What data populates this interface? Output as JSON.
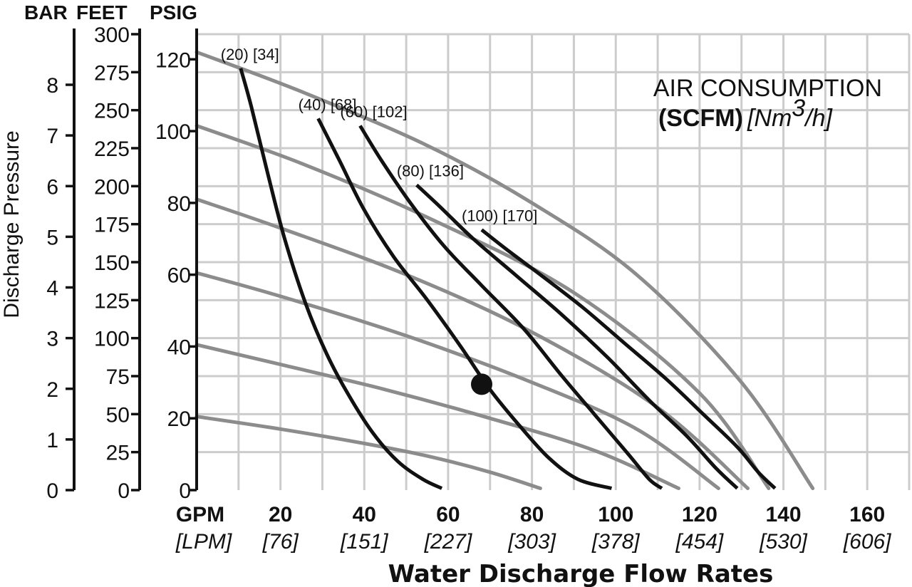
{
  "chart_data": {
    "type": "line",
    "title": "",
    "xlabel": "Water Discharge Flow Rates",
    "x_unit_primary": "GPM",
    "x_unit_secondary": "[LPM]",
    "x_ticks": [
      {
        "value": 20,
        "label": "20",
        "metric": "[76]"
      },
      {
        "value": 40,
        "label": "40",
        "metric": "[151]"
      },
      {
        "value": 60,
        "label": "60",
        "metric": "[227]"
      },
      {
        "value": 80,
        "label": "80",
        "metric": "[303]"
      },
      {
        "value": 100,
        "label": "100",
        "metric": "[378]"
      },
      {
        "value": 120,
        "label": "120",
        "metric": "[454]"
      },
      {
        "value": 140,
        "label": "140",
        "metric": "[530]"
      },
      {
        "value": 160,
        "label": "160",
        "metric": "[606]"
      }
    ],
    "xlim": [
      0,
      170
    ],
    "ylabel": "Discharge Pressure",
    "y_axes": {
      "psig": {
        "unit": "PSIG",
        "ticks": [
          "0",
          "20",
          "40",
          "60",
          "80",
          "100",
          "120"
        ]
      },
      "feet": {
        "unit": "FEET",
        "ticks": [
          "0",
          "25",
          "50",
          "75",
          "100",
          "125",
          "150",
          "175",
          "200",
          "225",
          "250",
          "275",
          "300"
        ]
      },
      "bar": {
        "unit": "BAR",
        "ticks": [
          "0",
          "1",
          "2",
          "3",
          "4",
          "5",
          "6",
          "7",
          "8"
        ]
      }
    },
    "ylim_psig": [
      0,
      127
    ],
    "grid": true,
    "legend": {
      "title": "AIR CONSUMPTION",
      "unit_bold": "(SCFM)",
      "unit_metric_prefix": "[Nm",
      "unit_metric_sup": "3",
      "unit_metric_suffix": "/h]",
      "placement": "top-right"
    },
    "air_curves": [
      {
        "label": "(20) [34]",
        "points": [
          [
            10.5,
            117.5
          ],
          [
            13,
            107
          ],
          [
            17,
            88
          ],
          [
            21,
            70
          ],
          [
            26,
            52
          ],
          [
            31,
            38
          ],
          [
            36,
            27
          ],
          [
            42,
            16
          ],
          [
            48,
            8
          ],
          [
            54,
            3
          ],
          [
            58.5,
            0.5
          ]
        ]
      },
      {
        "label": "(40) [68]",
        "points": [
          [
            29,
            103.5
          ],
          [
            34,
            92
          ],
          [
            40,
            78
          ],
          [
            47,
            65
          ],
          [
            55,
            53
          ],
          [
            63,
            40
          ],
          [
            70,
            28
          ],
          [
            77,
            18
          ],
          [
            84,
            9
          ],
          [
            91,
            3
          ],
          [
            99,
            0.5
          ]
        ]
      },
      {
        "label": "(60) [102]",
        "points": [
          [
            39,
            101.5
          ],
          [
            44,
            92
          ],
          [
            51,
            80
          ],
          [
            59,
            68
          ],
          [
            68,
            57
          ],
          [
            78,
            45
          ],
          [
            87,
            32
          ],
          [
            95,
            21
          ],
          [
            103,
            10
          ],
          [
            108,
            3
          ],
          [
            111,
            0.5
          ]
        ]
      },
      {
        "label": "(80) [136]",
        "points": [
          [
            52.5,
            85
          ],
          [
            58,
            79
          ],
          [
            66,
            70
          ],
          [
            76,
            60
          ],
          [
            87,
            49
          ],
          [
            98,
            37
          ],
          [
            108,
            25
          ],
          [
            117,
            15
          ],
          [
            124,
            6
          ],
          [
            129,
            0.5
          ]
        ]
      },
      {
        "label": "(100) [170]",
        "points": [
          [
            68,
            72.5
          ],
          [
            74,
            67
          ],
          [
            82,
            60
          ],
          [
            92,
            51
          ],
          [
            102,
            41
          ],
          [
            112,
            31
          ],
          [
            121,
            21
          ],
          [
            129,
            12
          ],
          [
            134,
            5
          ],
          [
            138,
            0.5
          ]
        ]
      }
    ],
    "discharge_curves": [
      {
        "points": [
          [
            0,
            20.5
          ],
          [
            20,
            17
          ],
          [
            40,
            13
          ],
          [
            55,
            9.5
          ],
          [
            70,
            5
          ],
          [
            82,
            0.5
          ]
        ]
      },
      {
        "points": [
          [
            0,
            40.5
          ],
          [
            20,
            35
          ],
          [
            45,
            28
          ],
          [
            70,
            20
          ],
          [
            95,
            11
          ],
          [
            115,
            0.5
          ]
        ]
      },
      {
        "points": [
          [
            0,
            60.5
          ],
          [
            20,
            54
          ],
          [
            50,
            43
          ],
          [
            80,
            30
          ],
          [
            105,
            17
          ],
          [
            124.5,
            0.5
          ]
        ]
      },
      {
        "points": [
          [
            0,
            81
          ],
          [
            20,
            73
          ],
          [
            50,
            60
          ],
          [
            80,
            44
          ],
          [
            110,
            23
          ],
          [
            131.5,
            0.5
          ]
        ]
      },
      {
        "points": [
          [
            0,
            101.5
          ],
          [
            25,
            91
          ],
          [
            55,
            76
          ],
          [
            90,
            55
          ],
          [
            120,
            27
          ],
          [
            136.5,
            0.5
          ]
        ]
      },
      {
        "points": [
          [
            0,
            122
          ],
          [
            25,
            111
          ],
          [
            55,
            96
          ],
          [
            80,
            80
          ],
          [
            105,
            60
          ],
          [
            130,
            30
          ],
          [
            147,
            0.5
          ]
        ]
      }
    ],
    "operating_point": {
      "x": 68,
      "y": 29.5
    },
    "colors": {
      "air_curve": "#111111",
      "discharge_curve": "#8c8c8c",
      "grid": "#cccccc",
      "axis": "#111111",
      "background": "#ffffff"
    }
  }
}
